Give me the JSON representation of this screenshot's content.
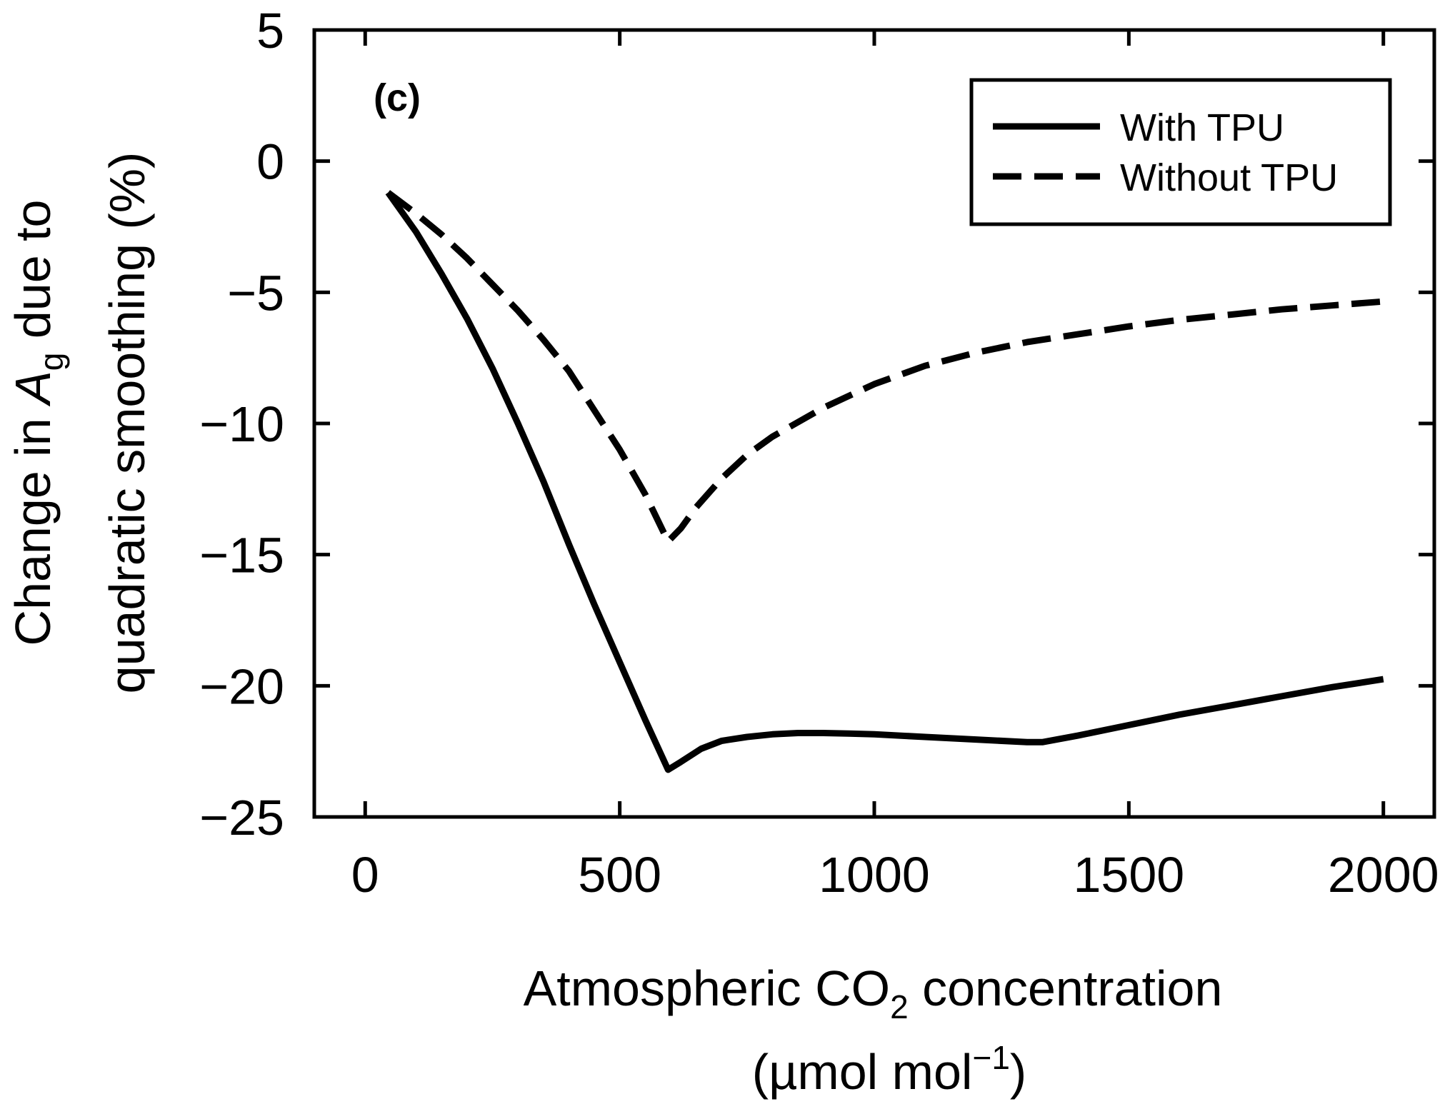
{
  "chart_data": {
    "type": "line",
    "panel_label": "(c)",
    "title": "",
    "xlabel": {
      "prefix": "Atmospheric CO",
      "subscript": "2",
      "suffix": " concentration",
      "units_prefix": "(µmol mol",
      "units_superscript": "−1",
      "units_suffix": ")"
    },
    "ylabel": {
      "line1_prefix": "Change in ",
      "line1_var": "A",
      "line1_subscript": "g",
      "line1_suffix": " due to",
      "line2": "quadratic smoothing (%)"
    },
    "xlim": [
      -100,
      2100
    ],
    "ylim": [
      -25,
      5
    ],
    "xticks": [
      0,
      500,
      1000,
      1500,
      2000
    ],
    "xtick_labels": [
      "0",
      "500",
      "1000",
      "1500",
      "2000"
    ],
    "yticks": [
      5,
      0,
      -5,
      -10,
      -15,
      -20,
      -25
    ],
    "ytick_labels": [
      "5",
      "0",
      "−5",
      "−10",
      "−15",
      "−20",
      "−25"
    ],
    "grid": false,
    "legend_position": "top-right",
    "series": [
      {
        "name": "With TPU",
        "style": "solid",
        "color": "#000000",
        "x": [
          45,
          100,
          150,
          200,
          250,
          300,
          350,
          400,
          450,
          500,
          550,
          595,
          620,
          660,
          700,
          750,
          800,
          850,
          900,
          950,
          1000,
          1100,
          1200,
          1300,
          1330,
          1400,
          1500,
          1600,
          1700,
          1800,
          1900,
          2000
        ],
        "y": [
          -1.2,
          -2.7,
          -4.3,
          -6.0,
          -7.9,
          -10.0,
          -12.2,
          -14.6,
          -16.9,
          -19.1,
          -21.3,
          -23.2,
          -22.9,
          -22.4,
          -22.1,
          -21.95,
          -21.85,
          -21.8,
          -21.8,
          -21.82,
          -21.85,
          -21.95,
          -22.05,
          -22.15,
          -22.15,
          -21.9,
          -21.5,
          -21.1,
          -20.75,
          -20.4,
          -20.05,
          -19.75
        ]
      },
      {
        "name": "Without TPU",
        "style": "dashed",
        "color": "#000000",
        "x": [
          45,
          100,
          150,
          200,
          250,
          300,
          350,
          400,
          450,
          500,
          550,
          595,
          620,
          650,
          700,
          750,
          800,
          900,
          1000,
          1100,
          1200,
          1300,
          1400,
          1500,
          1600,
          1700,
          1800,
          1900,
          2000
        ],
        "y": [
          -1.2,
          -2.0,
          -2.8,
          -3.7,
          -4.7,
          -5.7,
          -6.8,
          -8.0,
          -9.5,
          -11.0,
          -12.7,
          -14.5,
          -14.0,
          -13.2,
          -12.1,
          -11.2,
          -10.5,
          -9.4,
          -8.5,
          -7.8,
          -7.3,
          -6.9,
          -6.6,
          -6.3,
          -6.05,
          -5.85,
          -5.65,
          -5.5,
          -5.35
        ]
      }
    ]
  }
}
